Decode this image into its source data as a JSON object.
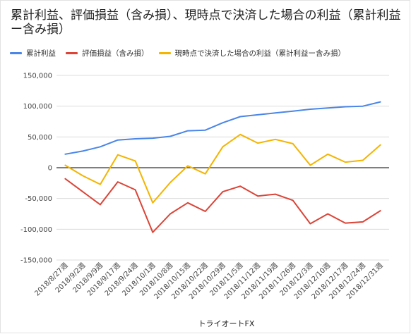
{
  "chart_data": {
    "type": "line",
    "title": "累計利益、評価損益（含み損）、現時点で決済した場合の利益（累計利益ー含み損）",
    "xlabel": "トライオートFX",
    "ylabel": "",
    "ylim": [
      -150000,
      150000
    ],
    "yticks": [
      "150,000",
      "100,000",
      "50,000",
      "0",
      "-50,000",
      "-100,000",
      "-150,000"
    ],
    "grid": true,
    "legend_position": "top",
    "categories": [
      "2018/8/27週",
      "2018/9/2週",
      "2018/9/9週",
      "2018/9/17週",
      "2018/9/24週",
      "2018/10/1週",
      "2018/10/8週",
      "2018/10/15週",
      "2018/10/22週",
      "2018/10/29週",
      "2018/11/5週",
      "2018/11/12週",
      "2018/11/19週",
      "2018/11/26週",
      "2018/12/3週",
      "2018/12/10週",
      "2018/12/17週",
      "2018/12/24週",
      "2018/12/31週"
    ],
    "series": [
      {
        "name": "累計利益",
        "color": "#4a86e8",
        "values": [
          22000,
          27000,
          34000,
          45000,
          47000,
          48000,
          51000,
          60000,
          61000,
          73000,
          83000,
          86000,
          89000,
          92000,
          95000,
          97000,
          99000,
          100000,
          107000
        ]
      },
      {
        "name": "評価損益（含み損）",
        "color": "#db4437",
        "values": [
          -18000,
          -39000,
          -60000,
          -23000,
          -36000,
          -105000,
          -75000,
          -57000,
          -71000,
          -39000,
          -30000,
          -46000,
          -43000,
          -53000,
          -91000,
          -75000,
          -90000,
          -88000,
          -70000
        ]
      },
      {
        "name": "現時点で決済した場合の利益（累計利益ー含み損）",
        "color": "#f4b400",
        "values": [
          4000,
          -13000,
          -27000,
          21000,
          11000,
          -57000,
          -24000,
          3000,
          -10000,
          34000,
          54000,
          40000,
          46000,
          39000,
          4000,
          22000,
          9000,
          12000,
          37000
        ]
      }
    ]
  }
}
